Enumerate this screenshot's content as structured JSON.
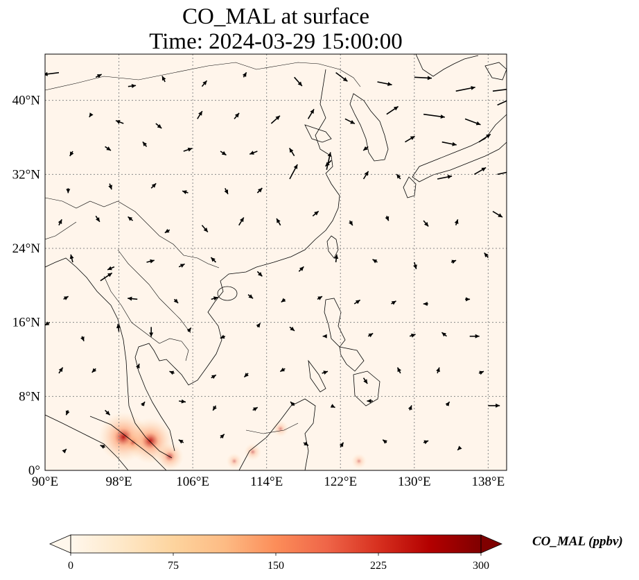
{
  "title": {
    "line1": "CO_MAL at surface",
    "line2": "Time: 2024-03-29 15:00:00"
  },
  "map": {
    "projection": "PlateCarree",
    "lon_range": [
      90,
      140
    ],
    "lat_range": [
      0,
      45
    ],
    "gridlines": "dotted",
    "lon_ticks": [
      90,
      98,
      106,
      114,
      122,
      130,
      138
    ],
    "lon_tick_labels": [
      "90°E",
      "98°E",
      "106°E",
      "114°E",
      "122°E",
      "130°E",
      "138°E"
    ],
    "lat_ticks": [
      0,
      8,
      16,
      24,
      32,
      40
    ],
    "lat_tick_labels": [
      "0°",
      "8°N",
      "16°N",
      "24°N",
      "32°N",
      "40°N"
    ],
    "background_color": "#fff5eb",
    "coastline_color": "#000000"
  },
  "colorbar": {
    "label": "CO_MAL (ppbv)",
    "colormap": "OrRd",
    "min": 0,
    "max": 300,
    "ticks": [
      0,
      75,
      150,
      225,
      300
    ],
    "tick_labels": [
      "0",
      "75",
      "150",
      "225",
      "300"
    ],
    "extend": "both",
    "colors": [
      "#fff7ec",
      "#fee8c8",
      "#fdd49e",
      "#fdbb84",
      "#fc8d59",
      "#ef6548",
      "#d7301f",
      "#b30000",
      "#7f0000"
    ]
  },
  "hotspots": [
    {
      "lon": 98.5,
      "lat": 3.6,
      "value": 280
    },
    {
      "lon": 101.4,
      "lat": 3.2,
      "value": 250
    },
    {
      "lon": 103.5,
      "lat": 1.5,
      "value": 120
    },
    {
      "lon": 99.5,
      "lat": 3.0,
      "value": 60
    },
    {
      "lon": 112.5,
      "lat": 2.0,
      "value": 45
    },
    {
      "lon": 115.5,
      "lat": 4.5,
      "value": 40
    },
    {
      "lon": 110.5,
      "lat": 1.0,
      "value": 35
    },
    {
      "lon": 124.0,
      "lat": 1.0,
      "value": 30
    }
  ],
  "wind_vectors": [
    {
      "lon": 91.5,
      "lat": 43.0,
      "u": -1.6,
      "v": -0.2
    },
    {
      "lon": 95.5,
      "lat": 42.5,
      "u": 0.6,
      "v": 0.3
    },
    {
      "lon": 99.0,
      "lat": 41.5,
      "u": 0.8,
      "v": 0.1
    },
    {
      "lon": 103.0,
      "lat": 42.0,
      "u": -0.3,
      "v": 0.6
    },
    {
      "lon": 107.0,
      "lat": 41.5,
      "u": 0.5,
      "v": 0.6
    },
    {
      "lon": 111.5,
      "lat": 42.5,
      "u": 0.3,
      "v": 0.5
    },
    {
      "lon": 117.0,
      "lat": 42.5,
      "u": 0.8,
      "v": -0.9
    },
    {
      "lon": 121.5,
      "lat": 43.0,
      "u": 1.2,
      "v": -0.9
    },
    {
      "lon": 126.0,
      "lat": 42.0,
      "u": 1.5,
      "v": -0.3
    },
    {
      "lon": 130.0,
      "lat": 42.5,
      "u": 1.8,
      "v": -0.1
    },
    {
      "lon": 134.5,
      "lat": 41.0,
      "u": 2.0,
      "v": 0.4
    },
    {
      "lon": 138.5,
      "lat": 41.0,
      "u": 2.4,
      "v": 0.3
    },
    {
      "lon": 95.0,
      "lat": 38.5,
      "u": -0.2,
      "v": -0.3
    },
    {
      "lon": 98.5,
      "lat": 37.5,
      "u": -0.8,
      "v": 0.3
    },
    {
      "lon": 102.0,
      "lat": 37.5,
      "u": 0.6,
      "v": -0.5
    },
    {
      "lon": 106.5,
      "lat": 38.0,
      "u": 0.5,
      "v": 0.8
    },
    {
      "lon": 110.5,
      "lat": 38.0,
      "u": 0.5,
      "v": 0.6
    },
    {
      "lon": 114.5,
      "lat": 37.5,
      "u": 0.9,
      "v": 0.8
    },
    {
      "lon": 118.5,
      "lat": 38.0,
      "u": 0.6,
      "v": 1.0
    },
    {
      "lon": 122.5,
      "lat": 38.0,
      "u": 1.0,
      "v": -0.5
    },
    {
      "lon": 127.0,
      "lat": 38.5,
      "u": 1.2,
      "v": 0.8
    },
    {
      "lon": 131.0,
      "lat": 38.5,
      "u": 2.2,
      "v": -0.3
    },
    {
      "lon": 135.5,
      "lat": 38.0,
      "u": 1.6,
      "v": -0.6
    },
    {
      "lon": 139.0,
      "lat": 39.5,
      "u": 1.8,
      "v": 0.8
    },
    {
      "lon": 93.0,
      "lat": 34.5,
      "u": -0.3,
      "v": -0.5
    },
    {
      "lon": 96.5,
      "lat": 35.0,
      "u": 0.6,
      "v": -0.4
    },
    {
      "lon": 101.0,
      "lat": 35.0,
      "u": -0.4,
      "v": 0.5
    },
    {
      "lon": 105.0,
      "lat": 34.5,
      "u": 0.9,
      "v": 0.3
    },
    {
      "lon": 109.0,
      "lat": 34.5,
      "u": 0.6,
      "v": -0.4
    },
    {
      "lon": 113.0,
      "lat": 34.5,
      "u": -0.8,
      "v": -0.3
    },
    {
      "lon": 117.0,
      "lat": 34.0,
      "u": -0.5,
      "v": 0.8
    },
    {
      "lon": 121.0,
      "lat": 33.5,
      "u": -0.6,
      "v": -0.6
    },
    {
      "lon": 125.0,
      "lat": 35.0,
      "u": -0.5,
      "v": -0.4
    },
    {
      "lon": 129.0,
      "lat": 35.5,
      "u": 1.0,
      "v": 0.6
    },
    {
      "lon": 133.0,
      "lat": 35.5,
      "u": 1.5,
      "v": -0.3
    },
    {
      "lon": 137.0,
      "lat": 35.5,
      "u": 1.2,
      "v": 0.8
    },
    {
      "lon": 92.5,
      "lat": 30.5,
      "u": 0.0,
      "v": -0.5
    },
    {
      "lon": 97.0,
      "lat": 31.0,
      "u": 0.2,
      "v": -0.6
    },
    {
      "lon": 101.5,
      "lat": 30.5,
      "u": 0.5,
      "v": 0.5
    },
    {
      "lon": 105.5,
      "lat": 30.0,
      "u": -0.6,
      "v": 0.2
    },
    {
      "lon": 109.5,
      "lat": 30.5,
      "u": 0.3,
      "v": -0.6
    },
    {
      "lon": 113.0,
      "lat": 30.0,
      "u": 0.5,
      "v": 0.5
    },
    {
      "lon": 116.5,
      "lat": 31.5,
      "u": 0.8,
      "v": 1.5
    },
    {
      "lon": 120.5,
      "lat": 32.5,
      "u": 0.4,
      "v": 1.8
    },
    {
      "lon": 124.5,
      "lat": 31.5,
      "u": 0.5,
      "v": 0.8
    },
    {
      "lon": 128.5,
      "lat": 31.5,
      "u": -0.4,
      "v": 0.5
    },
    {
      "lon": 132.5,
      "lat": 31.5,
      "u": 1.5,
      "v": 0.3
    },
    {
      "lon": 136.5,
      "lat": 32.0,
      "u": 1.2,
      "v": 0.7
    },
    {
      "lon": 139.0,
      "lat": 32.0,
      "u": 1.4,
      "v": 0.3
    },
    {
      "lon": 91.5,
      "lat": 26.5,
      "u": 0.3,
      "v": 0.6
    },
    {
      "lon": 95.5,
      "lat": 27.5,
      "u": 0.4,
      "v": -0.6
    },
    {
      "lon": 99.5,
      "lat": 27.0,
      "u": -0.5,
      "v": 0.4
    },
    {
      "lon": 103.5,
      "lat": 26.0,
      "u": -0.5,
      "v": -0.3
    },
    {
      "lon": 107.0,
      "lat": 26.5,
      "u": 0.6,
      "v": -0.7
    },
    {
      "lon": 111.0,
      "lat": 26.5,
      "u": 0.5,
      "v": 0.8
    },
    {
      "lon": 115.5,
      "lat": 26.5,
      "u": -0.4,
      "v": 0.7
    },
    {
      "lon": 119.0,
      "lat": 27.5,
      "u": 0.6,
      "v": 0.5
    },
    {
      "lon": 123.0,
      "lat": 27.0,
      "u": 0.3,
      "v": -0.5
    },
    {
      "lon": 127.0,
      "lat": 27.5,
      "u": 0.2,
      "v": -0.5
    },
    {
      "lon": 131.0,
      "lat": 27.0,
      "u": 0.5,
      "v": -0.6
    },
    {
      "lon": 134.5,
      "lat": 26.5,
      "u": 0.2,
      "v": 0.6
    },
    {
      "lon": 138.5,
      "lat": 28.0,
      "u": 1.0,
      "v": -0.6
    },
    {
      "lon": 93.0,
      "lat": 22.5,
      "u": -0.2,
      "v": 0.8
    },
    {
      "lon": 97.5,
      "lat": 22.0,
      "u": -0.7,
      "v": -0.3
    },
    {
      "lon": 101.0,
      "lat": 22.5,
      "u": 0.8,
      "v": 0.2
    },
    {
      "lon": 104.5,
      "lat": 22.0,
      "u": 0.6,
      "v": 0.3
    },
    {
      "lon": 108.5,
      "lat": 22.5,
      "u": -0.5,
      "v": 0.5
    },
    {
      "lon": 113.0,
      "lat": 21.5,
      "u": 0.5,
      "v": -0.5
    },
    {
      "lon": 117.5,
      "lat": 21.5,
      "u": 0.5,
      "v": 0.5
    },
    {
      "lon": 121.5,
      "lat": 22.5,
      "u": 0.1,
      "v": 0.8
    },
    {
      "lon": 126.0,
      "lat": 22.5,
      "u": -0.5,
      "v": 0.3
    },
    {
      "lon": 130.0,
      "lat": 22.5,
      "u": 0.2,
      "v": -0.7
    },
    {
      "lon": 134.0,
      "lat": 22.5,
      "u": 0.5,
      "v": 0.2
    },
    {
      "lon": 138.0,
      "lat": 23.0,
      "u": -0.4,
      "v": 0.5
    },
    {
      "lon": 92.0,
      "lat": 18.5,
      "u": 0.5,
      "v": 0.3
    },
    {
      "lon": 96.0,
      "lat": 20.5,
      "u": 1.2,
      "v": 0.8
    },
    {
      "lon": 100.0,
      "lat": 18.5,
      "u": -1.0,
      "v": 0.1
    },
    {
      "lon": 104.0,
      "lat": 18.5,
      "u": 0.4,
      "v": -0.4
    },
    {
      "lon": 108.0,
      "lat": 18.5,
      "u": 0.7,
      "v": 0.2
    },
    {
      "lon": 112.0,
      "lat": 19.0,
      "u": 0.5,
      "v": -0.4
    },
    {
      "lon": 116.0,
      "lat": 18.5,
      "u": -0.4,
      "v": -0.3
    },
    {
      "lon": 119.5,
      "lat": 18.5,
      "u": 0.5,
      "v": 0.3
    },
    {
      "lon": 123.5,
      "lat": 18.0,
      "u": 0.6,
      "v": 0.4
    },
    {
      "lon": 127.5,
      "lat": 18.0,
      "u": 0.5,
      "v": 0.3
    },
    {
      "lon": 131.5,
      "lat": 18.0,
      "u": -0.5,
      "v": 0.0
    },
    {
      "lon": 135.5,
      "lat": 18.5,
      "u": 0.5,
      "v": 0.0
    },
    {
      "lon": 90.5,
      "lat": 16.0,
      "u": -0.5,
      "v": -0.3
    },
    {
      "lon": 94.0,
      "lat": 14.5,
      "u": 0.2,
      "v": -0.5
    },
    {
      "lon": 98.0,
      "lat": 15.0,
      "u": -0.1,
      "v": 0.8
    },
    {
      "lon": 101.5,
      "lat": 15.5,
      "u": 0.0,
      "v": -1.0
    },
    {
      "lon": 105.5,
      "lat": 15.0,
      "u": 0.3,
      "v": 0.4
    },
    {
      "lon": 109.5,
      "lat": 14.5,
      "u": -0.5,
      "v": -0.2
    },
    {
      "lon": 113.0,
      "lat": 15.5,
      "u": 0.3,
      "v": 0.4
    },
    {
      "lon": 116.5,
      "lat": 15.5,
      "u": 0.5,
      "v": -0.4
    },
    {
      "lon": 120.5,
      "lat": 14.5,
      "u": -0.4,
      "v": 0.0
    },
    {
      "lon": 125.0,
      "lat": 14.5,
      "u": 0.5,
      "v": 0.3
    },
    {
      "lon": 129.5,
      "lat": 14.5,
      "u": 0.6,
      "v": 0.2
    },
    {
      "lon": 133.5,
      "lat": 14.5,
      "u": -0.5,
      "v": 0.4
    },
    {
      "lon": 136.0,
      "lat": 14.5,
      "u": 1.0,
      "v": 0.0
    },
    {
      "lon": 91.5,
      "lat": 10.5,
      "u": 0.4,
      "v": 0.6
    },
    {
      "lon": 95.5,
      "lat": 11.0,
      "u": -0.4,
      "v": -0.4
    },
    {
      "lon": 100.0,
      "lat": 11.0,
      "u": 0.2,
      "v": 0.5
    },
    {
      "lon": 104.0,
      "lat": 10.5,
      "u": -0.5,
      "v": 0.2
    },
    {
      "lon": 108.0,
      "lat": 10.0,
      "u": 0.5,
      "v": 0.3
    },
    {
      "lon": 112.0,
      "lat": 10.5,
      "u": -0.4,
      "v": -0.4
    },
    {
      "lon": 116.0,
      "lat": 11.0,
      "u": -0.5,
      "v": -0.3
    },
    {
      "lon": 120.0,
      "lat": 10.5,
      "u": 0.6,
      "v": 0.2
    },
    {
      "lon": 124.5,
      "lat": 10.0,
      "u": 0.4,
      "v": -0.6
    },
    {
      "lon": 128.5,
      "lat": 10.5,
      "u": -0.3,
      "v": 0.6
    },
    {
      "lon": 132.5,
      "lat": 10.5,
      "u": 0.2,
      "v": 0.6
    },
    {
      "lon": 137.0,
      "lat": 10.5,
      "u": 0.5,
      "v": 0.2
    },
    {
      "lon": 92.5,
      "lat": 6.5,
      "u": -0.2,
      "v": -0.5
    },
    {
      "lon": 96.5,
      "lat": 6.5,
      "u": 0.5,
      "v": -0.5
    },
    {
      "lon": 100.5,
      "lat": 7.0,
      "u": 0.3,
      "v": 0.4
    },
    {
      "lon": 104.5,
      "lat": 7.5,
      "u": 0.7,
      "v": -0.1
    },
    {
      "lon": 108.5,
      "lat": 7.0,
      "u": -0.3,
      "v": -0.5
    },
    {
      "lon": 112.5,
      "lat": 6.5,
      "u": 0.5,
      "v": 0.3
    },
    {
      "lon": 117.0,
      "lat": 7.0,
      "u": -0.4,
      "v": 0.4
    },
    {
      "lon": 121.0,
      "lat": 7.0,
      "u": 0.4,
      "v": -0.2
    },
    {
      "lon": 125.5,
      "lat": 7.5,
      "u": -0.6,
      "v": 0.0
    },
    {
      "lon": 129.5,
      "lat": 6.5,
      "u": 0.2,
      "v": 0.5
    },
    {
      "lon": 133.5,
      "lat": 7.0,
      "u": 0.3,
      "v": 0.4
    },
    {
      "lon": 138.0,
      "lat": 7.0,
      "u": 1.2,
      "v": 0.0
    },
    {
      "lon": 92.0,
      "lat": 2.0,
      "u": 0.3,
      "v": 0.3
    },
    {
      "lon": 96.5,
      "lat": 2.5,
      "u": -0.5,
      "v": 0.2
    },
    {
      "lon": 105.0,
      "lat": 3.0,
      "u": -0.5,
      "v": 0.3
    },
    {
      "lon": 109.0,
      "lat": 3.5,
      "u": 0.4,
      "v": 0.4
    },
    {
      "lon": 118.0,
      "lat": 3.0,
      "u": 0.5,
      "v": -0.3
    },
    {
      "lon": 122.0,
      "lat": 2.5,
      "u": 0.3,
      "v": 0.5
    },
    {
      "lon": 127.0,
      "lat": 3.0,
      "u": -0.4,
      "v": 0.3
    },
    {
      "lon": 131.0,
      "lat": 3.0,
      "u": 0.5,
      "v": 0.2
    },
    {
      "lon": 135.0,
      "lat": 2.5,
      "u": -0.3,
      "v": -0.3
    }
  ]
}
